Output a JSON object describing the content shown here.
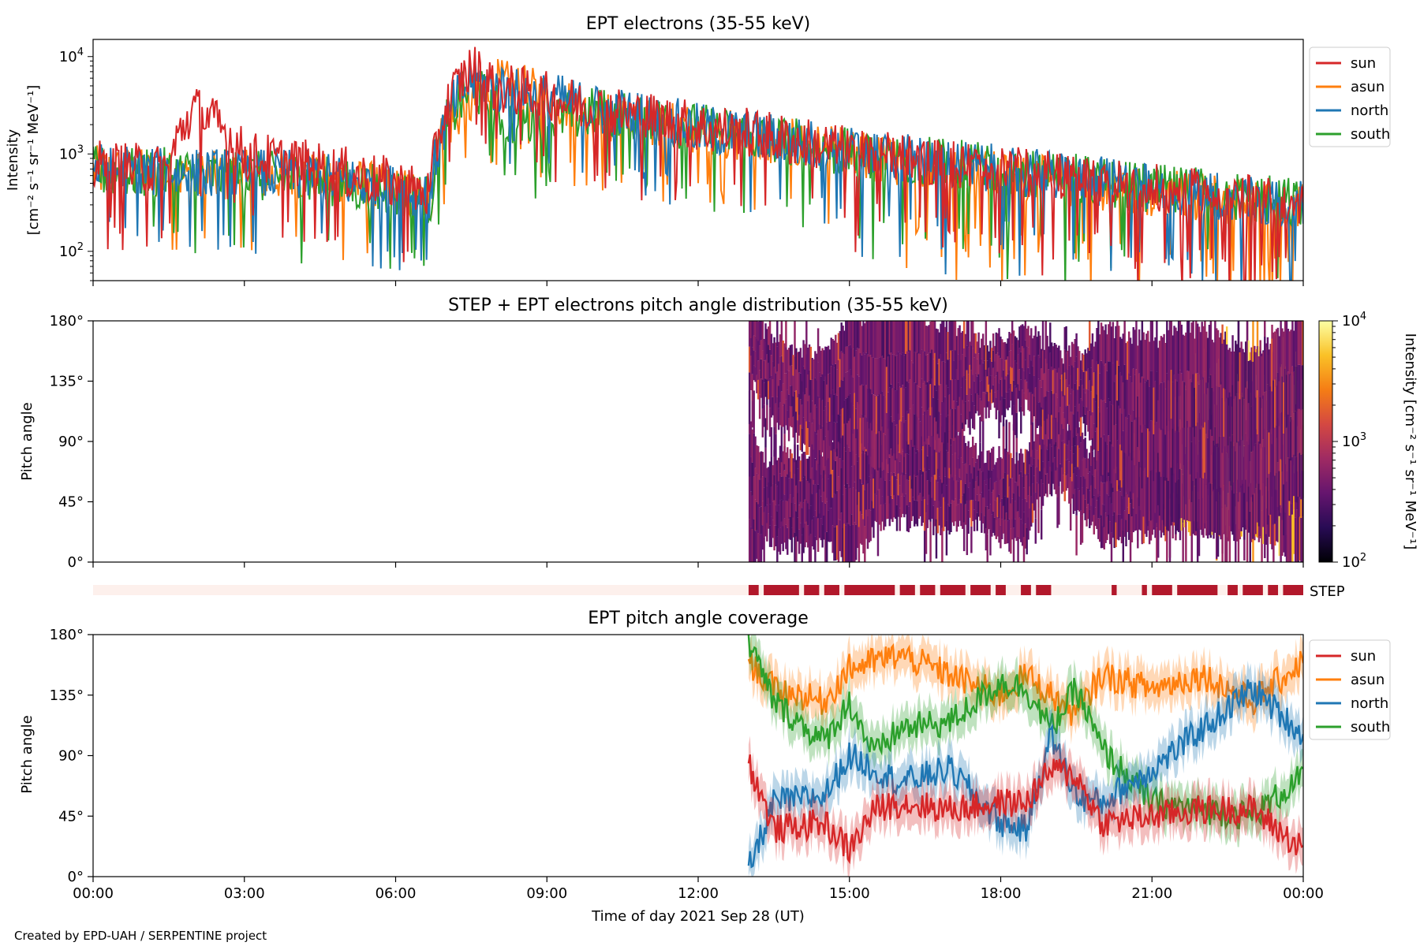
{
  "figure": {
    "credit": "Created by EPD-UAH / SERPENTINE project",
    "xlabel": "Time of day 2021 Sep 28 (UT)",
    "time_ticks": [
      "00:00",
      "03:00",
      "06:00",
      "09:00",
      "12:00",
      "15:00",
      "18:00",
      "21:00",
      "00:00"
    ]
  },
  "colors": {
    "sun": "#d62728",
    "asun": "#ff7f0e",
    "north": "#1f77b4",
    "south": "#2ca02c",
    "step_on": "#b2182b",
    "step_off": "#fdf0ec"
  },
  "chart_data": [
    {
      "id": "intensity",
      "type": "line",
      "title": "EPT electrons (35-55 keV)",
      "ylabel_line1": "Intensity",
      "ylabel_line2": "[cm⁻² s⁻¹ sr⁻¹ MeV⁻¹]",
      "yscale": "log",
      "ylim": [
        50,
        15000
      ],
      "xlim_hours": [
        0,
        24
      ],
      "ytick_base": "10",
      "ytick_exps": [
        "2",
        "3",
        "4"
      ],
      "legend": [
        "sun",
        "asun",
        "north",
        "south"
      ],
      "legend_position": "outside-top-right",
      "key_points": {
        "sun": [
          [
            0,
            800
          ],
          [
            1.5,
            700
          ],
          [
            2,
            3000
          ],
          [
            3,
            1000
          ],
          [
            6.7,
            400
          ],
          [
            6.9,
            2000
          ],
          [
            7.2,
            5000
          ],
          [
            7.5,
            8000
          ],
          [
            8,
            5000
          ],
          [
            10,
            3000
          ],
          [
            12,
            2000
          ],
          [
            15,
            1100
          ],
          [
            18,
            700
          ],
          [
            21,
            450
          ],
          [
            24,
            300
          ]
        ],
        "asun": [
          [
            0,
            700
          ],
          [
            2,
            600
          ],
          [
            4,
            650
          ],
          [
            6.7,
            350
          ],
          [
            7.0,
            2000
          ],
          [
            7.5,
            3500
          ],
          [
            8,
            5500
          ],
          [
            10,
            2500
          ],
          [
            12,
            1800
          ],
          [
            15,
            1000
          ],
          [
            18,
            600
          ],
          [
            21,
            420
          ],
          [
            24,
            280
          ]
        ],
        "north": [
          [
            0,
            750
          ],
          [
            2,
            650
          ],
          [
            4,
            650
          ],
          [
            6.7,
            380
          ],
          [
            7.0,
            2200
          ],
          [
            7.5,
            6000
          ],
          [
            8,
            5000
          ],
          [
            10,
            3000
          ],
          [
            12,
            1900
          ],
          [
            15,
            1100
          ],
          [
            18,
            700
          ],
          [
            21,
            450
          ],
          [
            24,
            300
          ]
        ],
        "south": [
          [
            0,
            700
          ],
          [
            2,
            650
          ],
          [
            4,
            600
          ],
          [
            6.7,
            350
          ],
          [
            7.0,
            2000
          ],
          [
            7.5,
            5000
          ],
          [
            8.2,
            2200
          ],
          [
            10,
            2800
          ],
          [
            12,
            1900
          ],
          [
            15,
            1050
          ],
          [
            18,
            700
          ],
          [
            21,
            450
          ],
          [
            24,
            320
          ]
        ]
      }
    },
    {
      "id": "pad",
      "type": "heatmap",
      "title": "STEP + EPT electrons pitch angle distribution (35-55 keV)",
      "ylabel": "Pitch angle",
      "ylim": [
        0,
        180
      ],
      "yticks": [
        "0°",
        "45°",
        "90°",
        "135°",
        "180°"
      ],
      "data_start_hour": 13.0,
      "colorbar": {
        "label": "Intensity [cm⁻² s⁻¹ sr⁻¹ MeV⁻¹]",
        "scale": "log",
        "range": [
          100,
          10000
        ],
        "ticks_base": "10",
        "tick_exps": [
          "2",
          "3",
          "4"
        ],
        "colormap": "inferno"
      }
    },
    {
      "id": "step",
      "type": "bar",
      "label": "STEP",
      "on_intervals_hours": [
        [
          13.0,
          13.2
        ],
        [
          13.3,
          14.0
        ],
        [
          14.1,
          14.4
        ],
        [
          14.5,
          14.8
        ],
        [
          14.9,
          15.9
        ],
        [
          16.0,
          16.3
        ],
        [
          16.4,
          16.7
        ],
        [
          16.8,
          17.3
        ],
        [
          17.4,
          17.8
        ],
        [
          17.9,
          18.1
        ],
        [
          18.4,
          18.6
        ],
        [
          18.7,
          19.0
        ],
        [
          20.2,
          20.3
        ],
        [
          20.8,
          20.9
        ],
        [
          21.0,
          21.4
        ],
        [
          21.5,
          22.3
        ],
        [
          22.5,
          22.7
        ],
        [
          22.8,
          23.2
        ],
        [
          23.3,
          23.5
        ],
        [
          23.6,
          24.0
        ]
      ]
    },
    {
      "id": "coverage",
      "type": "line",
      "title": "EPT pitch angle coverage",
      "ylabel": "Pitch angle",
      "ylim": [
        0,
        180
      ],
      "yticks": [
        "0°",
        "45°",
        "90°",
        "135°",
        "180°"
      ],
      "data_start_hour": 13.0,
      "legend": [
        "sun",
        "asun",
        "north",
        "south"
      ],
      "legend_position": "outside-top-right",
      "key_points": {
        "sun": [
          [
            13.0,
            85
          ],
          [
            13.5,
            35
          ],
          [
            14.5,
            40
          ],
          [
            15.0,
            20
          ],
          [
            15.5,
            50
          ],
          [
            16.0,
            55
          ],
          [
            17.0,
            50
          ],
          [
            18.0,
            55
          ],
          [
            18.5,
            55
          ],
          [
            19.0,
            80
          ],
          [
            19.5,
            75
          ],
          [
            20.0,
            40
          ],
          [
            21.0,
            45
          ],
          [
            22.0,
            50
          ],
          [
            23.0,
            50
          ],
          [
            24.0,
            20
          ]
        ],
        "asun": [
          [
            13.0,
            160
          ],
          [
            13.5,
            140
          ],
          [
            14.5,
            130
          ],
          [
            15.0,
            155
          ],
          [
            16.0,
            165
          ],
          [
            17.0,
            150
          ],
          [
            18.0,
            135
          ],
          [
            18.5,
            150
          ],
          [
            19.0,
            135
          ],
          [
            19.5,
            120
          ],
          [
            20.0,
            150
          ],
          [
            21.0,
            140
          ],
          [
            22.0,
            150
          ],
          [
            23.0,
            130
          ],
          [
            24.0,
            160
          ]
        ],
        "north": [
          [
            13.0,
            5
          ],
          [
            13.5,
            55
          ],
          [
            14.5,
            60
          ],
          [
            15.0,
            90
          ],
          [
            15.5,
            80
          ],
          [
            16.0,
            70
          ],
          [
            17.0,
            80
          ],
          [
            18.0,
            40
          ],
          [
            18.5,
            35
          ],
          [
            19.0,
            105
          ],
          [
            19.5,
            60
          ],
          [
            20.0,
            55
          ],
          [
            21.0,
            80
          ],
          [
            22.0,
            110
          ],
          [
            23.0,
            140
          ],
          [
            24.0,
            105
          ]
        ],
        "south": [
          [
            13.0,
            175
          ],
          [
            13.5,
            130
          ],
          [
            14.5,
            100
          ],
          [
            15.0,
            130
          ],
          [
            15.5,
            90
          ],
          [
            16.0,
            110
          ],
          [
            17.0,
            115
          ],
          [
            18.0,
            145
          ],
          [
            18.5,
            140
          ],
          [
            19.0,
            110
          ],
          [
            19.5,
            140
          ],
          [
            20.0,
            95
          ],
          [
            21.0,
            55
          ],
          [
            22.0,
            50
          ],
          [
            23.0,
            45
          ],
          [
            24.0,
            75
          ]
        ]
      }
    }
  ]
}
